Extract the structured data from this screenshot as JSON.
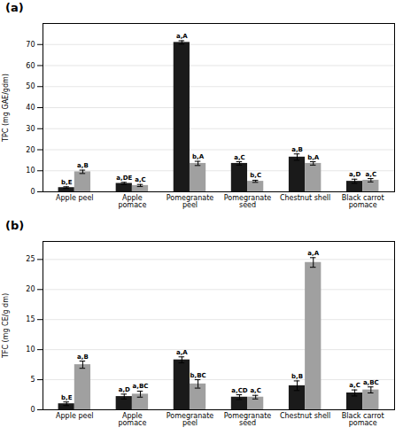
{
  "chart_data": [
    {
      "type": "bar",
      "title": "(a)",
      "ylabel": "TPC (mg GAE/gdm)",
      "categories": [
        "Apple peel",
        "Apple\npomace",
        "Pomegranate\npeel",
        "Pomegranate\nseed",
        "Chestnut shell",
        "Black carrot\npomace"
      ],
      "series": [
        {
          "color": "#1a1a1a",
          "values": [
            2.0,
            4.0,
            71.0,
            13.5,
            16.5,
            5.0
          ],
          "errors": [
            0.4,
            0.5,
            0.8,
            0.8,
            1.5,
            1.0
          ],
          "annotations": [
            "b,E",
            "a,DE",
            "a,A",
            "a,C",
            "a,B",
            "a,D"
          ]
        },
        {
          "color": "#a0a0a0",
          "values": [
            9.5,
            3.0,
            13.5,
            5.0,
            13.5,
            5.5
          ],
          "errors": [
            0.8,
            0.5,
            1.0,
            0.5,
            0.8,
            0.8
          ],
          "annotations": [
            "a,B",
            "a,C",
            "b,A",
            "b,C",
            "b,A",
            "a,C"
          ]
        }
      ],
      "ylim": [
        0,
        80
      ],
      "yticks": [
        0,
        10,
        20,
        30,
        40,
        50,
        60,
        70
      ],
      "grid": true
    },
    {
      "type": "bar",
      "title": "(b)",
      "ylabel": "TFC (mg CE/g dm)",
      "categories": [
        "Apple peel",
        "Apple\npomace",
        "Pomegranate\npeel",
        "Pomegranate\nseed",
        "Chestnut shell",
        "Black carrot\npomace"
      ],
      "series": [
        {
          "color": "#1a1a1a",
          "values": [
            1.0,
            2.2,
            8.3,
            2.1,
            4.0,
            2.8
          ],
          "errors": [
            0.3,
            0.4,
            0.5,
            0.4,
            0.8,
            0.5
          ],
          "annotations": [
            "b,E",
            "a,D",
            "a,A",
            "a,CD",
            "b,B",
            "a,C"
          ]
        },
        {
          "color": "#a0a0a0",
          "values": [
            7.5,
            2.6,
            4.3,
            2.1,
            24.5,
            3.3
          ],
          "errors": [
            0.6,
            0.5,
            0.7,
            0.3,
            0.8,
            0.5
          ],
          "annotations": [
            "a,B",
            "a,BC",
            "b,BC",
            "a,C",
            "a,A",
            "a,BC"
          ]
        }
      ],
      "ylim": [
        0,
        28
      ],
      "yticks": [
        0,
        5,
        10,
        15,
        20,
        25
      ],
      "grid": true
    }
  ]
}
